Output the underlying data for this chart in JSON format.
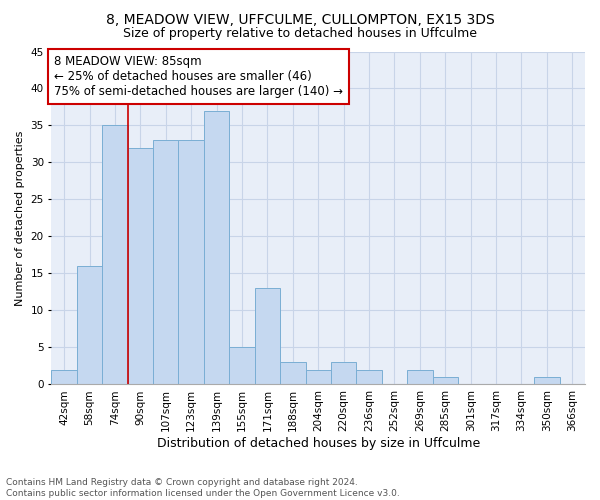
{
  "title1": "8, MEADOW VIEW, UFFCULME, CULLOMPTON, EX15 3DS",
  "title2": "Size of property relative to detached houses in Uffculme",
  "xlabel": "Distribution of detached houses by size in Uffculme",
  "ylabel": "Number of detached properties",
  "categories": [
    "42sqm",
    "58sqm",
    "74sqm",
    "90sqm",
    "107sqm",
    "123sqm",
    "139sqm",
    "155sqm",
    "171sqm",
    "188sqm",
    "204sqm",
    "220sqm",
    "236sqm",
    "252sqm",
    "269sqm",
    "285sqm",
    "301sqm",
    "317sqm",
    "334sqm",
    "350sqm",
    "366sqm"
  ],
  "values": [
    2,
    16,
    35,
    32,
    33,
    33,
    37,
    5,
    13,
    3,
    2,
    3,
    2,
    0,
    2,
    1,
    0,
    0,
    0,
    1,
    0
  ],
  "bar_color": "#c5d8f0",
  "bar_edge_color": "#7aaed4",
  "vline_index": 2,
  "vline_color": "#cc0000",
  "annotation_text": "8 MEADOW VIEW: 85sqm\n← 25% of detached houses are smaller (46)\n75% of semi-detached houses are larger (140) →",
  "annotation_box_color": "#ffffff",
  "annotation_box_edge": "#cc0000",
  "ylim": [
    0,
    45
  ],
  "yticks": [
    0,
    5,
    10,
    15,
    20,
    25,
    30,
    35,
    40,
    45
  ],
  "grid_color": "#c8d4e8",
  "bg_color": "#e8eef8",
  "footer": "Contains HM Land Registry data © Crown copyright and database right 2024.\nContains public sector information licensed under the Open Government Licence v3.0.",
  "title1_fontsize": 10,
  "title2_fontsize": 9,
  "xlabel_fontsize": 9,
  "ylabel_fontsize": 8,
  "tick_fontsize": 7.5,
  "annotation_fontsize": 8.5,
  "footer_fontsize": 6.5
}
